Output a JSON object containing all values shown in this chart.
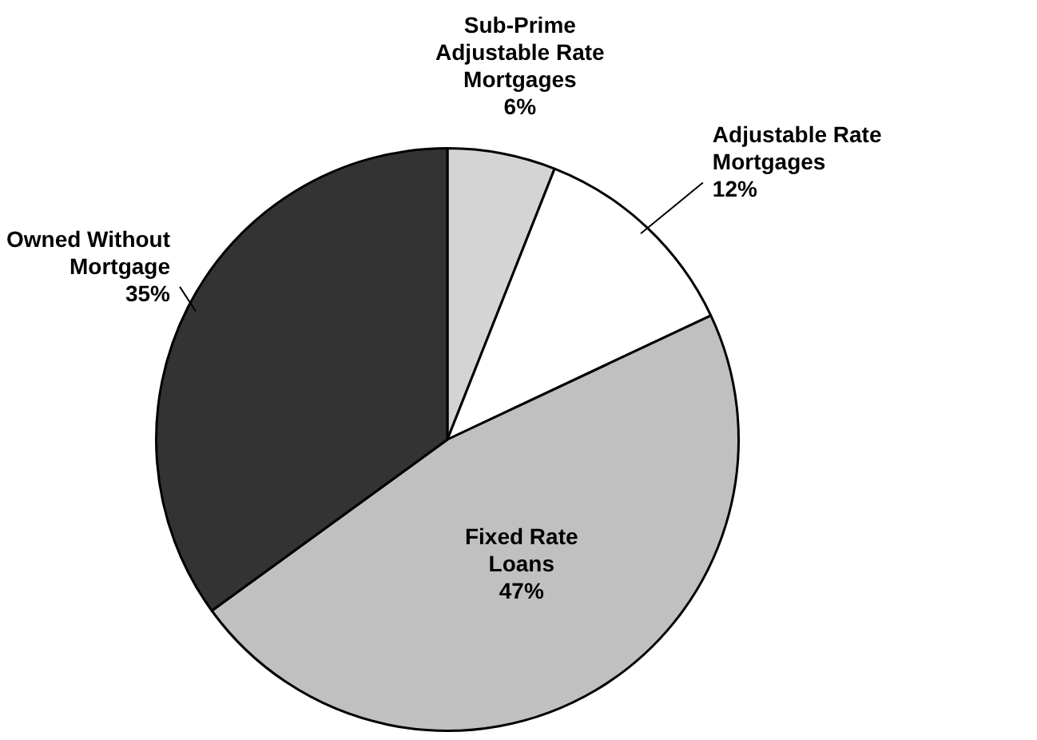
{
  "chart_data": {
    "type": "pie",
    "categories": [
      "Sub-Prime Adjustable Rate Mortgages",
      "Adjustable Rate Mortgages",
      "Fixed Rate Loans",
      "Owned Without Mortgage"
    ],
    "values": [
      6,
      12,
      47,
      35
    ],
    "colors": [
      "#d4d4d4",
      "#ffffff",
      "#c0c0c0",
      "#333333"
    ],
    "value_labels": [
      "6%",
      "12%",
      "47%",
      "35%"
    ],
    "legend": false
  }
}
